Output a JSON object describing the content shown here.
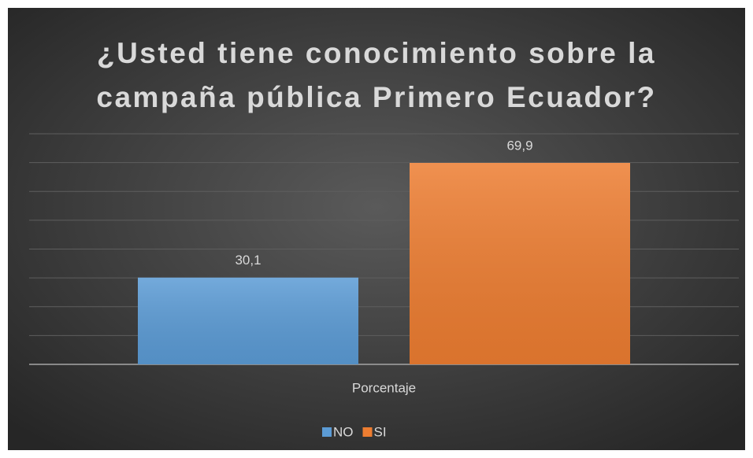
{
  "chart_data": {
    "type": "bar",
    "title": "¿Usted tiene conocimiento sobre la\ncampaña pública Primero Ecuador?",
    "categories": [
      "Porcentaje"
    ],
    "series": [
      {
        "name": "NO",
        "color": "#5b9bd5",
        "values": [
          30.1
        ],
        "value_labels": [
          "30,1"
        ]
      },
      {
        "name": "SI",
        "color": "#ed7d31",
        "values": [
          69.9
        ],
        "value_labels": [
          "69,9"
        ]
      }
    ],
    "ylim": [
      0,
      80
    ],
    "yticks": [
      0,
      10,
      20,
      30,
      40,
      50,
      60,
      70,
      80
    ],
    "grid": true,
    "legend": "bottom"
  }
}
